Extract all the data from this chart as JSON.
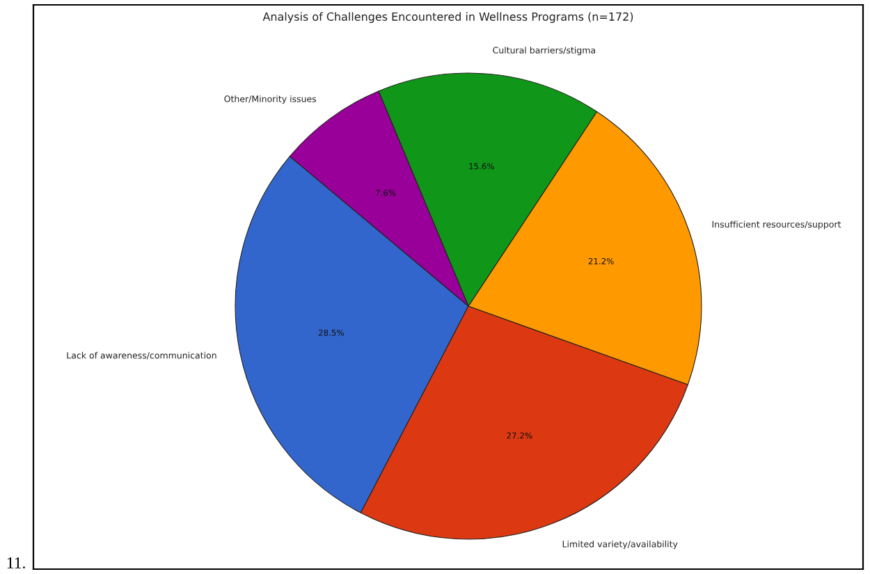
{
  "chart_data": {
    "type": "pie",
    "title": "Analysis of Challenges Encountered in Wellness Programs (n=172)",
    "categories": [
      "Lack of awareness/communication",
      "Limited variety/availability",
      "Insufficient resources/support",
      "Cultural barriers/stigma",
      "Other/Minority issues"
    ],
    "values": [
      28.5,
      27.2,
      21.2,
      15.6,
      7.6
    ],
    "colors": [
      "#3366cc",
      "#dc3912",
      "#ff9900",
      "#109618",
      "#990099"
    ],
    "value_labels": [
      "28.5%",
      "27.2%",
      "21.2%",
      "15.6%",
      "7.6%"
    ],
    "annotations": [
      "11."
    ]
  }
}
